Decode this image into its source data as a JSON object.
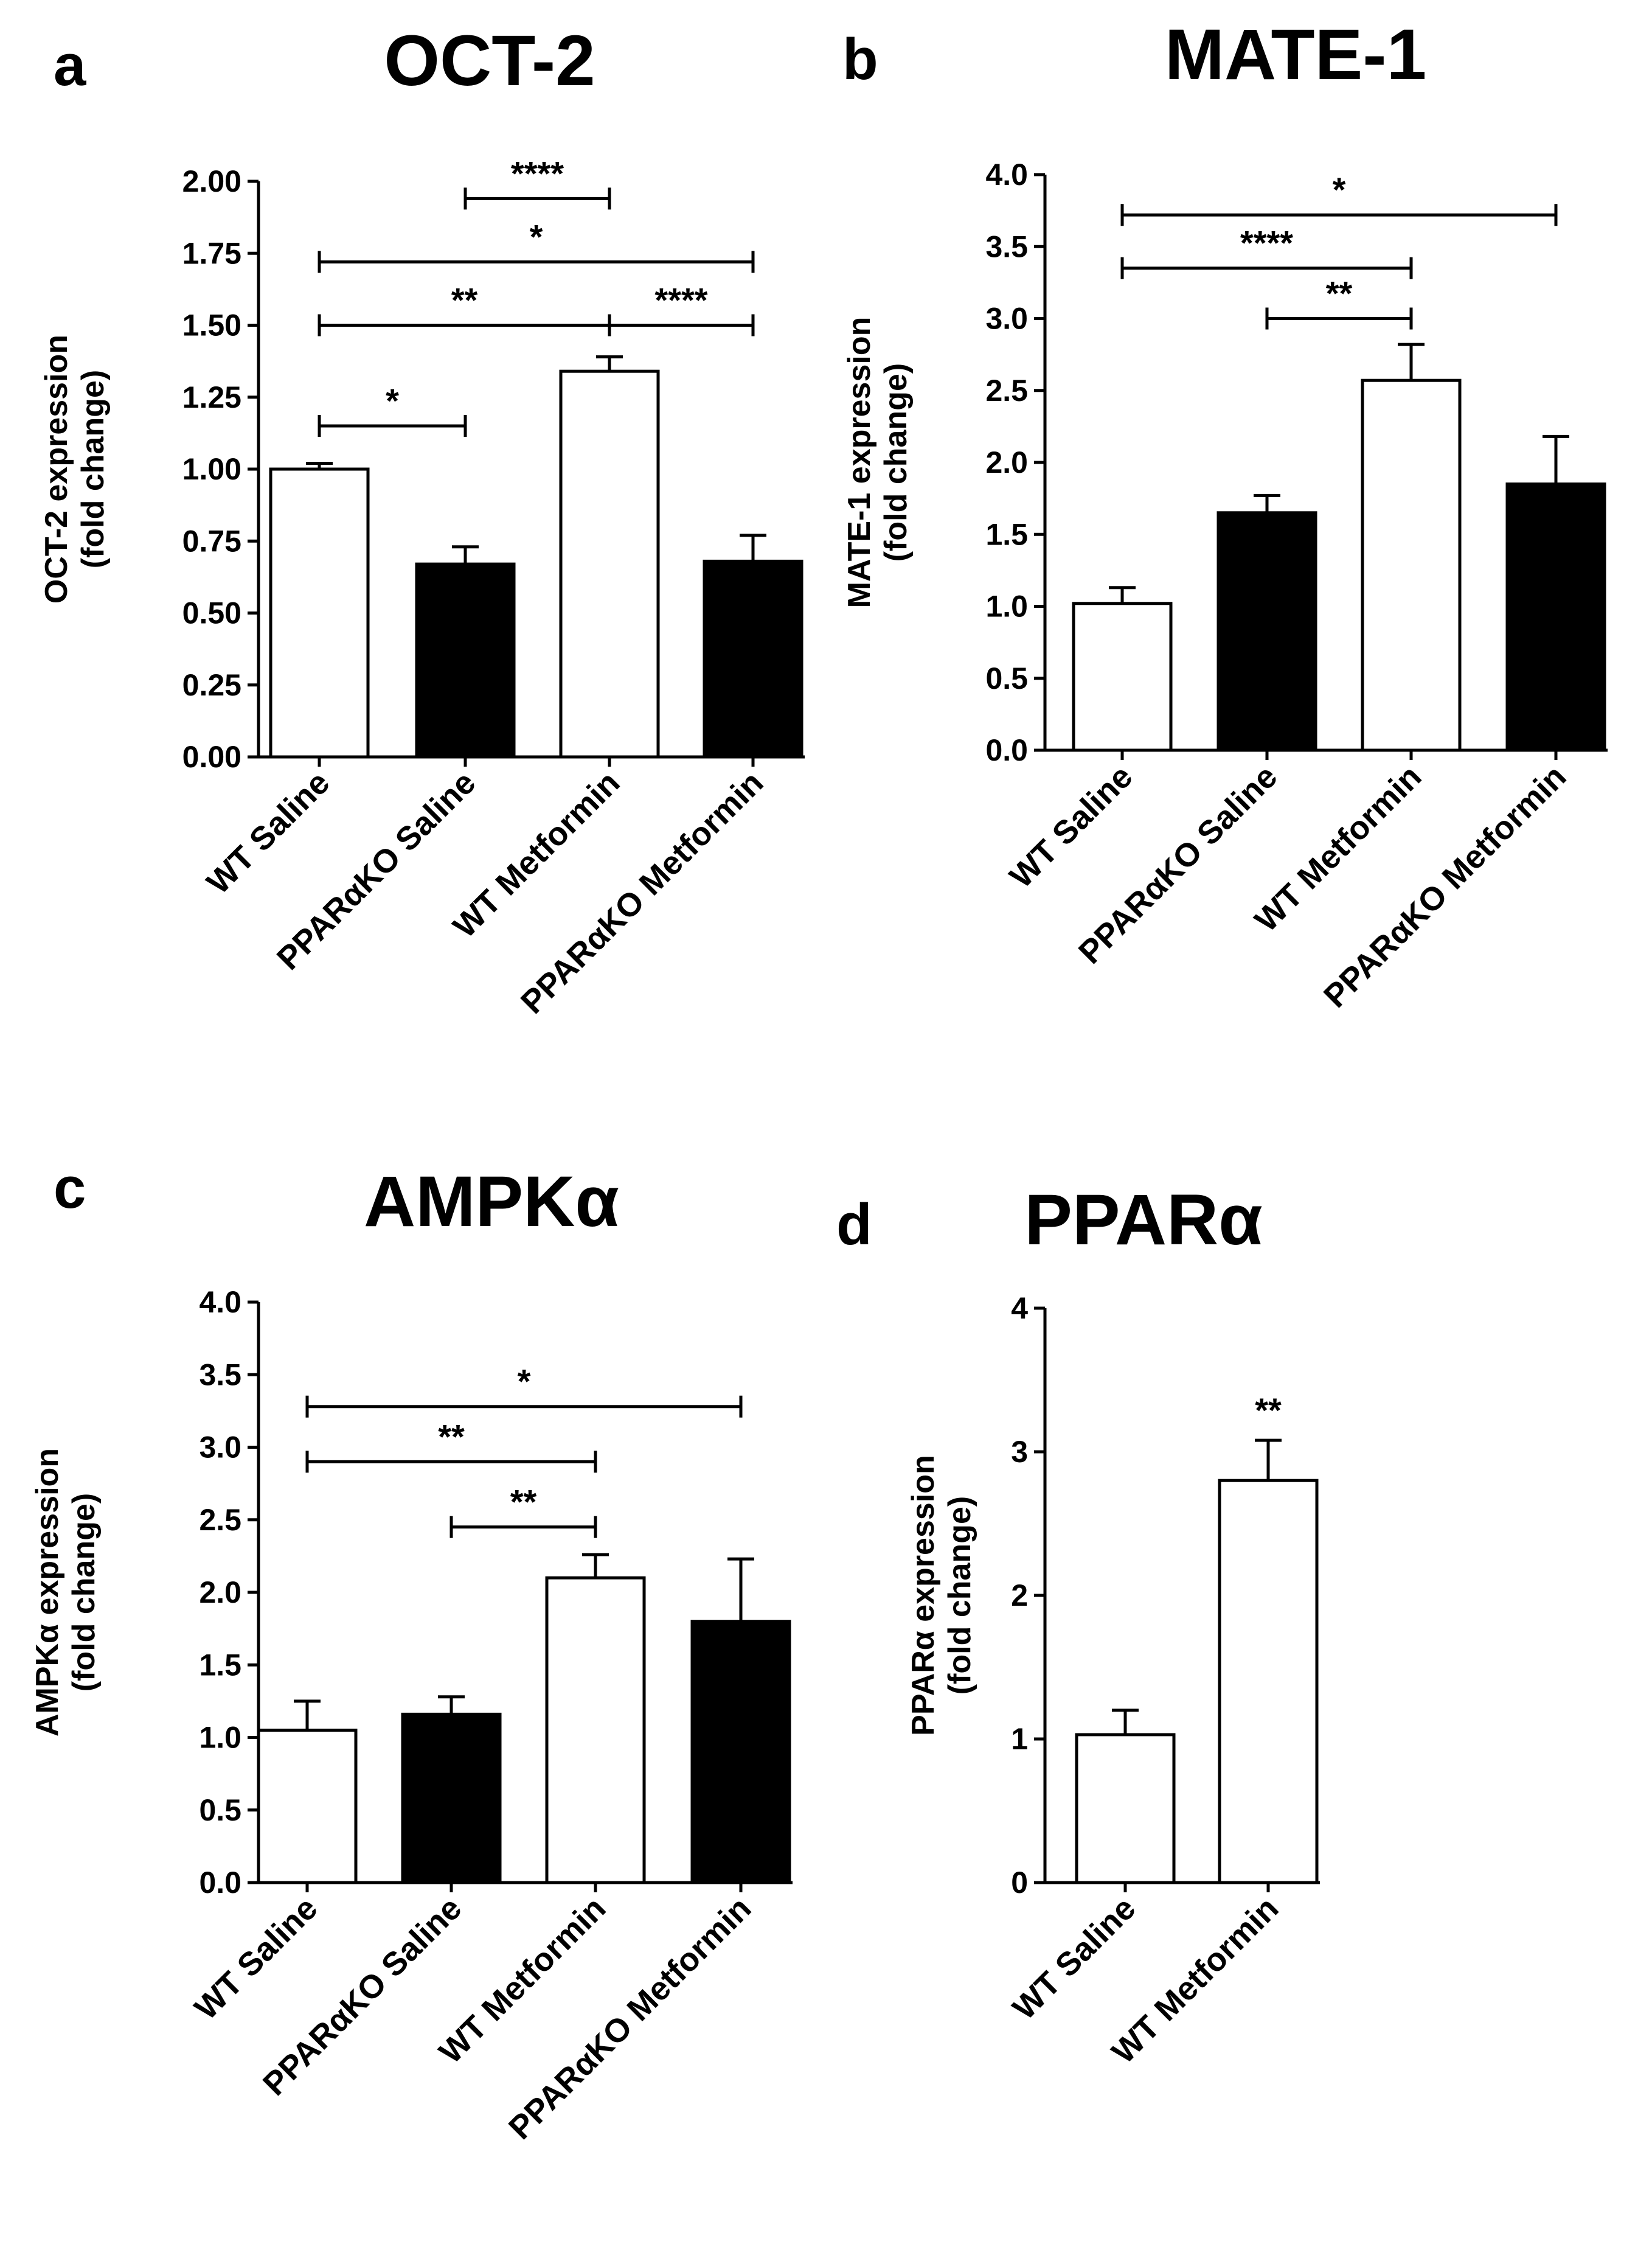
{
  "chart_data": [
    {
      "letter": "a",
      "type": "bar",
      "title": "OCT-2",
      "ylabel": [
        "OCT-2 expression",
        "(fold change)"
      ],
      "ylim": [
        0,
        2.0
      ],
      "yticks": [
        "0.00",
        "0.25",
        "0.50",
        "0.75",
        "1.00",
        "1.25",
        "1.50",
        "1.75",
        "2.00"
      ],
      "categories": [
        "WT Saline",
        "PPARαKO Saline",
        "WT Metformin",
        "PPARαKO Metformin"
      ],
      "values": [
        1.0,
        0.67,
        1.34,
        0.68
      ],
      "errors": [
        0.02,
        0.06,
        0.05,
        0.09
      ],
      "fills": [
        "#ffffff",
        "#000000",
        "#ffffff",
        "#000000"
      ],
      "significance": [
        {
          "from": 0,
          "to": 1,
          "y": 1.15,
          "label": "*"
        },
        {
          "from": 0,
          "to": 2,
          "y": 1.5,
          "label": "**"
        },
        {
          "from": 2,
          "to": 3,
          "y": 1.5,
          "label": "****"
        },
        {
          "from": 0,
          "to": 3,
          "y": 1.72,
          "label": "*"
        },
        {
          "from": 1,
          "to": 2,
          "y": 1.94,
          "label": "****"
        }
      ]
    },
    {
      "letter": "b",
      "type": "bar",
      "title": "MATE-1",
      "ylabel": [
        "MATE-1 expression",
        "(fold change)"
      ],
      "ylim": [
        0,
        4.0
      ],
      "yticks": [
        "0.0",
        "0.5",
        "1.0",
        "1.5",
        "2.0",
        "2.5",
        "3.0",
        "3.5",
        "4.0"
      ],
      "categories": [
        "WT Saline",
        "PPARαKO Saline",
        "WT Metformin",
        "PPARαKO Metformin"
      ],
      "values": [
        1.02,
        1.65,
        2.57,
        1.85
      ],
      "errors": [
        0.11,
        0.12,
        0.25,
        0.33
      ],
      "fills": [
        "#ffffff",
        "#000000",
        "#ffffff",
        "#000000"
      ],
      "significance": [
        {
          "from": 1,
          "to": 2,
          "y": 3.0,
          "label": "**"
        },
        {
          "from": 0,
          "to": 2,
          "y": 3.35,
          "label": "****"
        },
        {
          "from": 0,
          "to": 3,
          "y": 3.72,
          "label": "*"
        }
      ]
    },
    {
      "letter": "c",
      "type": "bar",
      "title": "AMPKα",
      "ylabel": [
        "AMPKα expression",
        "(fold change)"
      ],
      "ylim": [
        0,
        4.0
      ],
      "yticks": [
        "0.0",
        "0.5",
        "1.0",
        "1.5",
        "2.0",
        "2.5",
        "3.0",
        "3.5",
        "4.0"
      ],
      "categories": [
        "WT Saline",
        "PPARαKO Saline",
        "WT Metformin",
        "PPARαKO Metformin"
      ],
      "values": [
        1.05,
        1.16,
        2.1,
        1.8
      ],
      "errors": [
        0.2,
        0.12,
        0.16,
        0.43
      ],
      "fills": [
        "#ffffff",
        "#000000",
        "#ffffff",
        "#000000"
      ],
      "significance": [
        {
          "from": 1,
          "to": 2,
          "y": 2.45,
          "label": "**"
        },
        {
          "from": 0,
          "to": 2,
          "y": 2.9,
          "label": "**"
        },
        {
          "from": 0,
          "to": 3,
          "y": 3.28,
          "label": "*"
        }
      ]
    },
    {
      "letter": "d",
      "type": "bar",
      "title": "PPARα",
      "ylabel": [
        "PPARα expression",
        "(fold change)"
      ],
      "ylim": [
        0,
        4
      ],
      "yticks": [
        "0",
        "1",
        "2",
        "3",
        "4"
      ],
      "categories": [
        "WT Saline",
        "WT Metformin"
      ],
      "values": [
        1.03,
        2.8
      ],
      "errors": [
        0.17,
        0.28
      ],
      "fills": [
        "#ffffff",
        "#ffffff"
      ],
      "bar_labels": [
        "",
        "**"
      ],
      "significance": []
    }
  ]
}
